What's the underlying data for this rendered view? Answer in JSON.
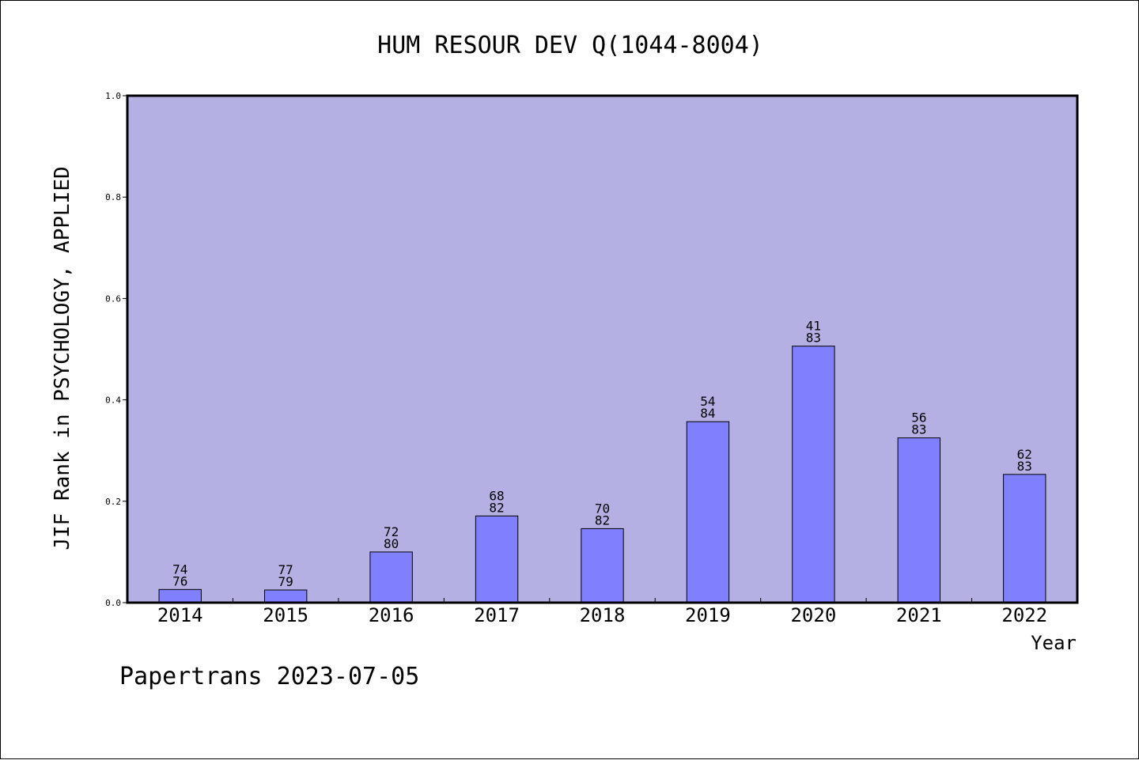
{
  "chart_data": {
    "type": "bar",
    "title": "HUM RESOUR DEV Q(1044-8004)",
    "xlabel": "Year",
    "ylabel": "JIF Rank in PSYCHOLOGY, APPLIED",
    "ylim": [
      0.0,
      1.0
    ],
    "yticks": [
      "0.0",
      "0.2",
      "0.4",
      "0.6",
      "0.8",
      "1.0"
    ],
    "categories": [
      "2014",
      "2015",
      "2016",
      "2017",
      "2018",
      "2019",
      "2020",
      "2021",
      "2022"
    ],
    "values": [
      0.026,
      0.025,
      0.1,
      0.171,
      0.146,
      0.357,
      0.506,
      0.325,
      0.253
    ],
    "labels_top": [
      "74",
      "77",
      "72",
      "68",
      "70",
      "54",
      "41",
      "56",
      "62"
    ],
    "labels_bottom": [
      "76",
      "79",
      "80",
      "82",
      "82",
      "84",
      "83",
      "83",
      "83"
    ],
    "grid": false,
    "colors": {
      "plot_background": "#b5b0e3",
      "bar_fill": "#8080ff",
      "bar_stroke": "#000000"
    }
  },
  "footer": {
    "text": "Papertrans 2023-07-05"
  }
}
